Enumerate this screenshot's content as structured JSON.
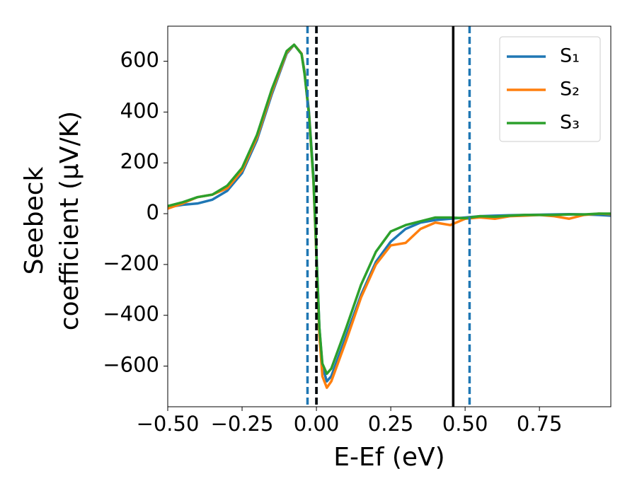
{
  "chart_data": {
    "type": "line",
    "x_label": "E-Ef (eV)",
    "y_label": [
      "Seebeck",
      "coefficient  (μV/K)"
    ],
    "x": [
      -0.5,
      -0.45,
      -0.4,
      -0.35,
      -0.3,
      -0.25,
      -0.2,
      -0.15,
      -0.1,
      -0.075,
      -0.05,
      -0.04,
      -0.025,
      -0.01,
      0,
      0.01,
      0.02,
      0.035,
      0.05,
      0.1,
      0.15,
      0.2,
      0.25,
      0.3,
      0.35,
      0.4,
      0.45,
      0.5,
      0.55,
      0.6,
      0.65,
      0.7,
      0.75,
      0.8,
      0.85,
      0.9,
      0.95,
      0.99
    ],
    "series": [
      {
        "name": "S₁",
        "color": "#1f77b4",
        "values": [
          25,
          35,
          40,
          55,
          90,
          160,
          290,
          470,
          630,
          665,
          630,
          560,
          400,
          150,
          -150,
          -450,
          -600,
          -660,
          -640,
          -480,
          -320,
          -190,
          -110,
          -60,
          -35,
          -25,
          -20,
          -15,
          -10,
          -8,
          -6,
          -5,
          -4,
          -3,
          -2,
          -3,
          -5,
          -8
        ]
      },
      {
        "name": "S₂",
        "color": "#ff7f0e",
        "values": [
          20,
          40,
          65,
          75,
          100,
          170,
          300,
          480,
          635,
          665,
          630,
          555,
          390,
          130,
          -170,
          -480,
          -640,
          -685,
          -660,
          -500,
          -330,
          -200,
          -125,
          -115,
          -60,
          -35,
          -45,
          -20,
          -15,
          -20,
          -10,
          -8,
          -5,
          -10,
          -20,
          -5,
          0,
          -2
        ]
      },
      {
        "name": "S₃",
        "color": "#2ca02c",
        "values": [
          30,
          45,
          65,
          75,
          110,
          180,
          310,
          490,
          640,
          665,
          628,
          550,
          390,
          130,
          -160,
          -450,
          -590,
          -630,
          -610,
          -450,
          -280,
          -150,
          -70,
          -45,
          -30,
          -15,
          -15,
          -18,
          -10,
          -12,
          -8,
          -5,
          -5,
          -5,
          -3,
          -3,
          0,
          0
        ]
      }
    ],
    "vlines": [
      {
        "x": -0.03,
        "color": "#1f77b4",
        "dashed": true
      },
      {
        "x": 0.0,
        "color": "#1f77b4",
        "dashed": true
      },
      {
        "x": 0.0,
        "color": "#000000",
        "dashed": true
      },
      {
        "x": 0.46,
        "color": "#000000",
        "dashed": false
      },
      {
        "x": 0.515,
        "color": "#1f77b4",
        "dashed": true
      }
    ],
    "xlim": [
      -0.5,
      0.99
    ],
    "ylim": [
      -760,
      738
    ],
    "xticks": [
      {
        "value": -0.5,
        "label": "−0.50"
      },
      {
        "value": -0.25,
        "label": "−0.25"
      },
      {
        "value": 0,
        "label": "0.00"
      },
      {
        "value": 0.25,
        "label": "0.25"
      },
      {
        "value": 0.5,
        "label": "0.50"
      },
      {
        "value": 0.75,
        "label": "0.75"
      }
    ],
    "yticks": [
      {
        "value": -600,
        "label": "−600"
      },
      {
        "value": -400,
        "label": "−400"
      },
      {
        "value": -200,
        "label": "−200"
      },
      0,
      200,
      400,
      600
    ],
    "legend": "upper right"
  }
}
